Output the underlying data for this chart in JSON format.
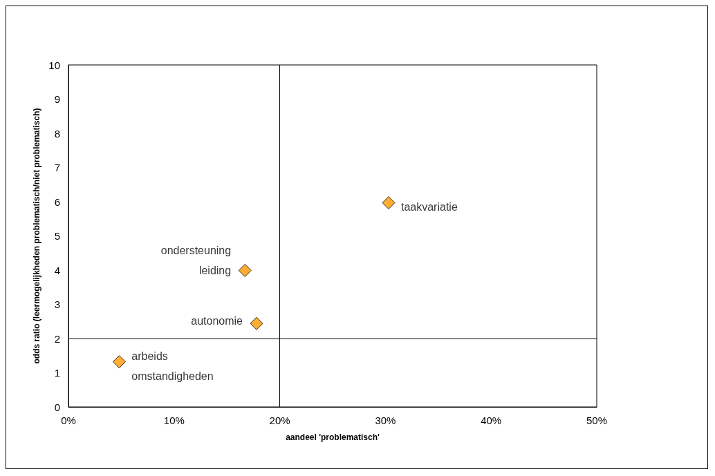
{
  "chart_data": {
    "type": "scatter",
    "xlabel": "aandeel 'problematisch'",
    "ylabel": "odds ratio (leermogelijkheden problematisch/niet problematisch)",
    "x": [
      30.3,
      16.7,
      17.8,
      4.8
    ],
    "values": [
      5.97,
      3.99,
      2.44,
      1.32
    ],
    "color": "#ff9900",
    "marker": "diamond",
    "grid": false,
    "xlim": [
      0,
      50
    ],
    "xticks": [
      {
        "value": 0,
        "label": "0%"
      },
      {
        "value": 10,
        "label": "10%"
      },
      {
        "value": 20,
        "label": "20%"
      },
      {
        "value": 30,
        "label": "30%"
      },
      {
        "value": 40,
        "label": "40%"
      },
      {
        "value": 50,
        "label": "50%"
      }
    ],
    "ylim": [
      0,
      10
    ],
    "yticks": [
      0,
      1,
      2,
      3,
      4,
      5,
      6,
      7,
      8,
      9,
      10
    ],
    "ref_lines": [
      {
        "axis": "x",
        "value": 20
      },
      {
        "axis": "y",
        "value": 2
      }
    ],
    "annotations": [
      {
        "text": "taakvariatie",
        "x": 30.3,
        "y": 5.97
      },
      {
        "text": "ondersteuning\nleiding",
        "x": 16.7,
        "y": 3.99
      },
      {
        "text": "autonomie",
        "x": 17.8,
        "y": 2.44
      },
      {
        "text": "arbeids\nomstandigheden",
        "x": 4.8,
        "y": 1.32
      }
    ]
  }
}
